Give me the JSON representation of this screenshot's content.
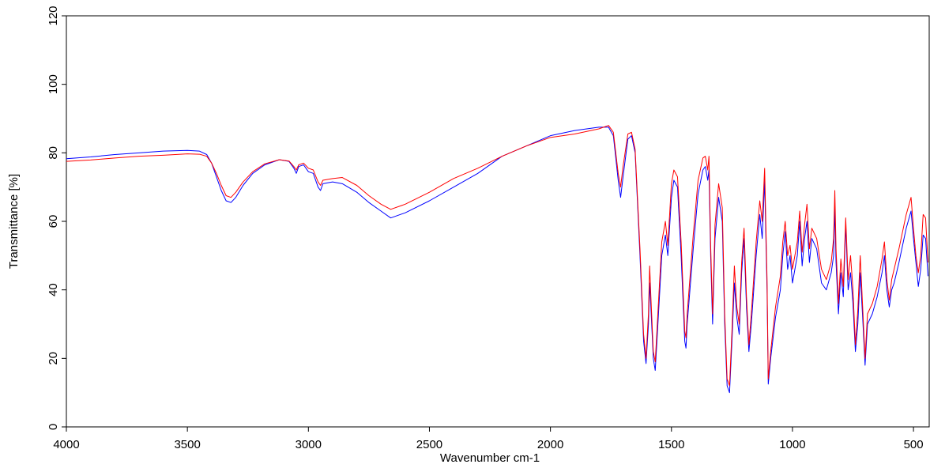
{
  "chart_data": {
    "type": "line",
    "x_label": "Wavenumber cm-1",
    "y_label": "Transmittance [%]",
    "xlim": [
      4000,
      435
    ],
    "ylim": [
      0,
      120
    ],
    "xticks": [
      4000,
      3500,
      3000,
      2500,
      2000,
      1500,
      1000,
      500
    ],
    "yticks": [
      0,
      20,
      40,
      60,
      80,
      100,
      120
    ],
    "x": [
      4000,
      3900,
      3800,
      3700,
      3600,
      3500,
      3450,
      3420,
      3400,
      3380,
      3360,
      3340,
      3320,
      3300,
      3270,
      3230,
      3180,
      3120,
      3080,
      3060,
      3050,
      3040,
      3020,
      3000,
      2980,
      2960,
      2950,
      2940,
      2900,
      2860,
      2800,
      2750,
      2700,
      2660,
      2600,
      2500,
      2400,
      2300,
      2200,
      2100,
      2000,
      1900,
      1800,
      1760,
      1740,
      1720,
      1710,
      1700,
      1680,
      1665,
      1650,
      1630,
      1615,
      1605,
      1595,
      1590,
      1585,
      1575,
      1567,
      1560,
      1540,
      1525,
      1515,
      1500,
      1490,
      1475,
      1460,
      1445,
      1440,
      1435,
      1410,
      1390,
      1370,
      1360,
      1350,
      1345,
      1338,
      1330,
      1320,
      1305,
      1290,
      1280,
      1270,
      1260,
      1250,
      1240,
      1230,
      1220,
      1210,
      1200,
      1190,
      1180,
      1170,
      1150,
      1135,
      1125,
      1115,
      1105,
      1100,
      1090,
      1070,
      1050,
      1040,
      1030,
      1020,
      1010,
      1000,
      980,
      970,
      960,
      950,
      940,
      930,
      920,
      900,
      880,
      860,
      840,
      830,
      825,
      820,
      810,
      800,
      790,
      780,
      770,
      760,
      750,
      740,
      730,
      720,
      710,
      700,
      690,
      670,
      650,
      630,
      620,
      610,
      600,
      590,
      580,
      560,
      530,
      510,
      500,
      490,
      480,
      470,
      460,
      450,
      440
    ],
    "series": [
      {
        "color": "#0000ff",
        "values": [
          78.3,
          78.8,
          79.5,
          80.0,
          80.5,
          80.7,
          80.5,
          79.5,
          77.0,
          73.0,
          69.0,
          66.0,
          65.5,
          67.0,
          70.5,
          74.0,
          76.5,
          78.0,
          77.5,
          75.5,
          74.0,
          76.0,
          76.5,
          74.5,
          74.0,
          70.0,
          69.0,
          71.0,
          71.5,
          71.0,
          68.5,
          65.5,
          63.0,
          61.0,
          62.5,
          66.0,
          70.0,
          74.0,
          79.0,
          82.0,
          85.0,
          86.5,
          87.5,
          87.5,
          85.0,
          72.0,
          67.0,
          73.0,
          84.0,
          85.0,
          80.0,
          50.0,
          25.0,
          18.5,
          30.0,
          42.0,
          35.0,
          20.0,
          16.5,
          25.0,
          50.0,
          56.0,
          50.0,
          67.0,
          72.0,
          70.0,
          50.0,
          25.0,
          23.0,
          30.0,
          52.0,
          68.0,
          75.0,
          76.0,
          72.0,
          75.0,
          50.0,
          30.0,
          55.0,
          67.0,
          60.0,
          30.0,
          12.0,
          10.0,
          25.0,
          42.0,
          32.0,
          27.0,
          45.0,
          55.0,
          35.0,
          22.0,
          30.0,
          50.0,
          62.0,
          55.0,
          72.0,
          40.0,
          12.5,
          20.0,
          32.0,
          40.0,
          50.0,
          57.0,
          46.0,
          50.0,
          42.0,
          50.0,
          60.0,
          47.0,
          55.0,
          60.0,
          48.0,
          55.0,
          52.0,
          42.0,
          40.0,
          45.0,
          50.0,
          64.0,
          48.0,
          33.0,
          45.0,
          38.0,
          59.0,
          40.0,
          45.0,
          36.0,
          22.0,
          30.0,
          45.0,
          32.0,
          18.0,
          30.0,
          33.0,
          38.0,
          45.0,
          50.0,
          40.0,
          35.0,
          40.0,
          42.0,
          48.0,
          58.0,
          63.0,
          55.0,
          48.0,
          41.0,
          46.0,
          56.0,
          55.0,
          44.0
        ]
      },
      {
        "color": "#ff0000",
        "values": [
          77.5,
          77.9,
          78.5,
          79.0,
          79.3,
          79.7,
          79.6,
          79.0,
          77.0,
          74.0,
          70.5,
          67.5,
          67.0,
          68.5,
          71.5,
          74.5,
          76.8,
          78.0,
          77.6,
          76.0,
          75.0,
          76.5,
          77.0,
          75.5,
          75.0,
          71.5,
          70.5,
          72.0,
          72.5,
          72.8,
          70.5,
          67.5,
          65.0,
          63.5,
          65.0,
          68.5,
          72.5,
          75.5,
          79.0,
          82.0,
          84.5,
          85.5,
          87.0,
          88.0,
          86.0,
          74.0,
          70.0,
          76.0,
          85.5,
          86.0,
          81.0,
          52.0,
          27.0,
          20.0,
          33.0,
          47.0,
          38.0,
          22.0,
          19.0,
          28.0,
          54.0,
          60.0,
          53.0,
          71.0,
          75.0,
          73.0,
          54.0,
          28.0,
          26.0,
          33.0,
          56.0,
          72.0,
          78.5,
          79.0,
          75.0,
          79.0,
          53.0,
          33.0,
          59.0,
          71.0,
          64.0,
          33.0,
          14.0,
          12.0,
          28.0,
          47.0,
          35.0,
          30.0,
          48.0,
          58.0,
          38.0,
          24.0,
          33.0,
          54.0,
          66.0,
          60.0,
          75.5,
          43.0,
          14.0,
          22.0,
          35.0,
          44.0,
          54.0,
          60.0,
          50.0,
          53.0,
          46.0,
          54.0,
          63.0,
          51.0,
          59.0,
          65.0,
          52.0,
          58.0,
          55.0,
          46.0,
          43.0,
          48.0,
          55.0,
          69.0,
          52.0,
          36.0,
          49.0,
          41.0,
          61.0,
          43.0,
          50.0,
          40.0,
          24.0,
          34.0,
          50.0,
          35.0,
          20.0,
          33.0,
          36.0,
          41.0,
          49.0,
          54.0,
          43.0,
          37.0,
          43.0,
          46.0,
          52.0,
          62.0,
          67.0,
          58.0,
          50.0,
          45.0,
          50.0,
          62.0,
          61.0,
          48.0
        ]
      }
    ]
  }
}
